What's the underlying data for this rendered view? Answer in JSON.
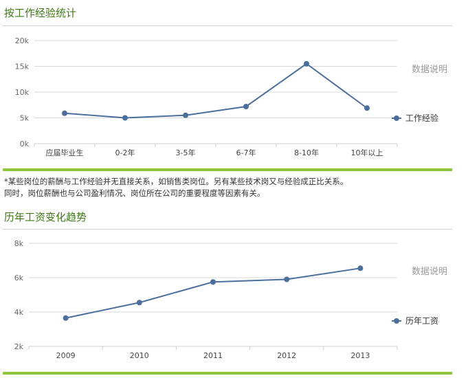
{
  "section1": {
    "title": "按工作经验统计",
    "note_line1": "*某些岗位的薪酬与工作经验并无直接关系，如销售类岗位。另有某些技术岗又与经验成正比关系。",
    "note_line2": "同时，岗位薪酬也与公司盈利情况、岗位所在公司的重要程度等因素有关。"
  },
  "section2": {
    "title": "历年工资变化趋势"
  },
  "chart_data": [
    {
      "type": "line",
      "categories": [
        "应届毕业生",
        "0-2年",
        "3-5年",
        "6-7年",
        "8-10年",
        "10年以上"
      ],
      "series": [
        {
          "name": "工作经验",
          "values": [
            5900,
            5000,
            5500,
            7200,
            15500,
            6900
          ]
        }
      ],
      "yticks": [
        "0k",
        "5k",
        "10k",
        "15k",
        "20k"
      ],
      "ylim": [
        0,
        20000
      ],
      "grid": true,
      "side_label": "数据说明",
      "legend": "right",
      "color": "#4a6f9e"
    },
    {
      "type": "line",
      "categories": [
        "2009",
        "2010",
        "2011",
        "2012",
        "2013"
      ],
      "series": [
        {
          "name": "历年工资",
          "values": [
            3650,
            4550,
            5750,
            5900,
            6550
          ]
        }
      ],
      "yticks": [
        "2k",
        "4k",
        "6k",
        "8k"
      ],
      "ylim": [
        2000,
        8000
      ],
      "grid": true,
      "side_label": "数据说明",
      "legend": "right",
      "color": "#4a6f9e"
    }
  ]
}
